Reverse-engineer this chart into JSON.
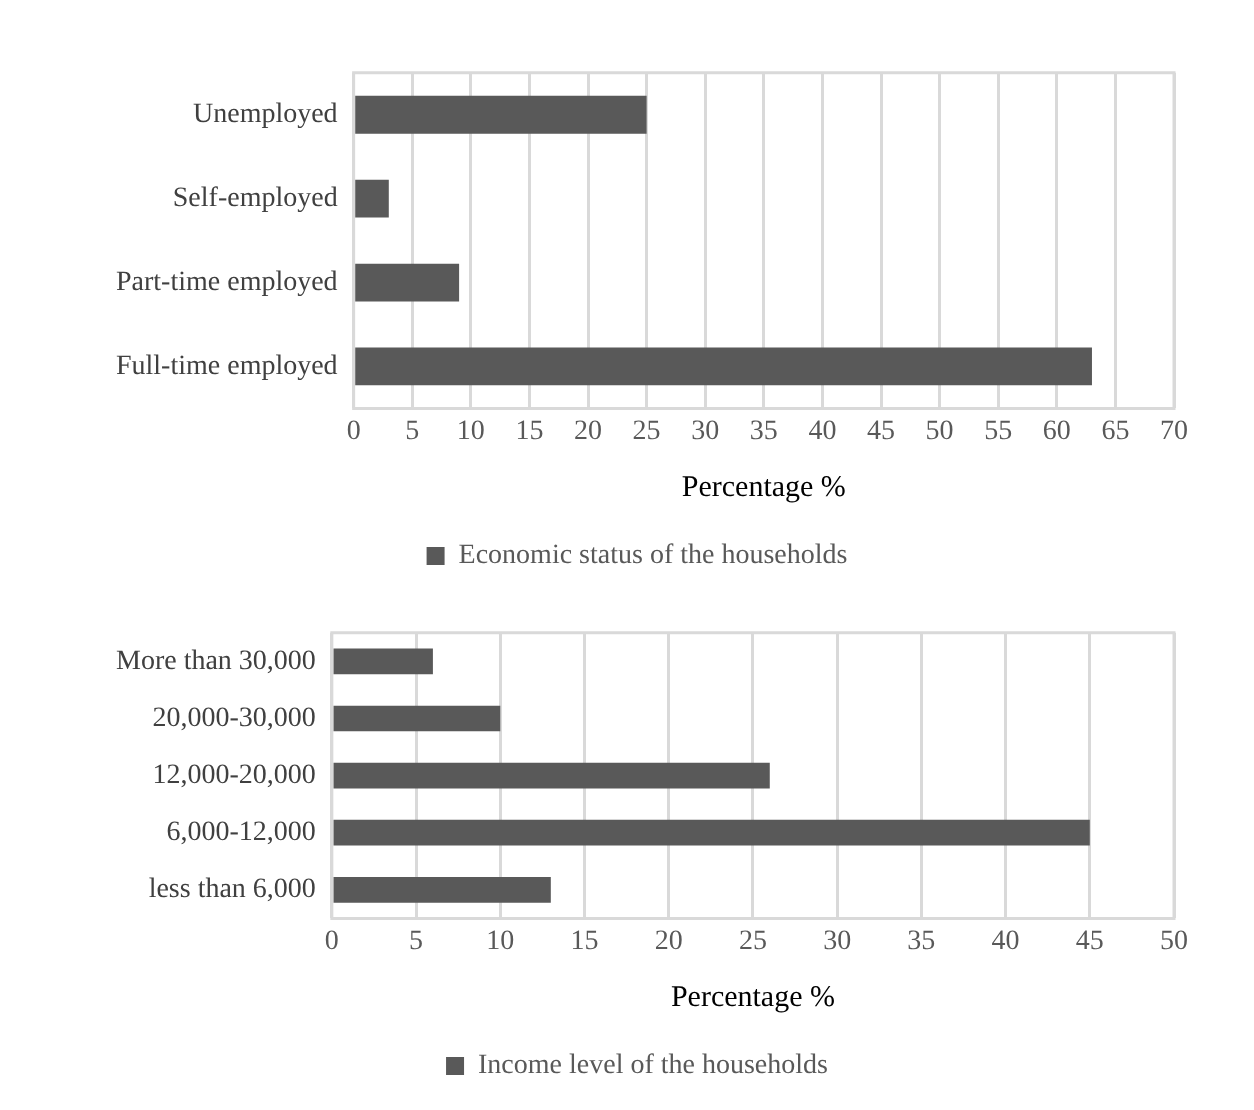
{
  "chart_data": [
    {
      "type": "bar",
      "orientation": "horizontal",
      "xlabel": "Percentage %",
      "categories": [
        "Unemployed",
        "Self-employed",
        "Part-time employed",
        "Full-time employed"
      ],
      "series": [
        {
          "name": "Economic status of the households",
          "color": "#595959",
          "values": [
            25,
            3,
            9,
            63
          ]
        }
      ],
      "xlim": [
        0,
        70
      ],
      "xticks": [
        0,
        5,
        10,
        15,
        20,
        25,
        30,
        35,
        40,
        45,
        50,
        55,
        60,
        65,
        70
      ],
      "grid": "x",
      "legend": "bottom"
    },
    {
      "type": "bar",
      "orientation": "horizontal",
      "xlabel": "Percentage %",
      "categories": [
        "More than 30,000",
        "20,000-30,000",
        "12,000-20,000",
        "6,000-12,000",
        "less than 6,000"
      ],
      "series": [
        {
          "name": "Income level of the households",
          "color": "#595959",
          "values": [
            6,
            10,
            26,
            45,
            13
          ]
        }
      ],
      "xlim": [
        0,
        50
      ],
      "xticks": [
        0,
        5,
        10,
        15,
        20,
        25,
        30,
        35,
        40,
        45,
        50
      ],
      "grid": "x",
      "legend": "bottom"
    }
  ]
}
